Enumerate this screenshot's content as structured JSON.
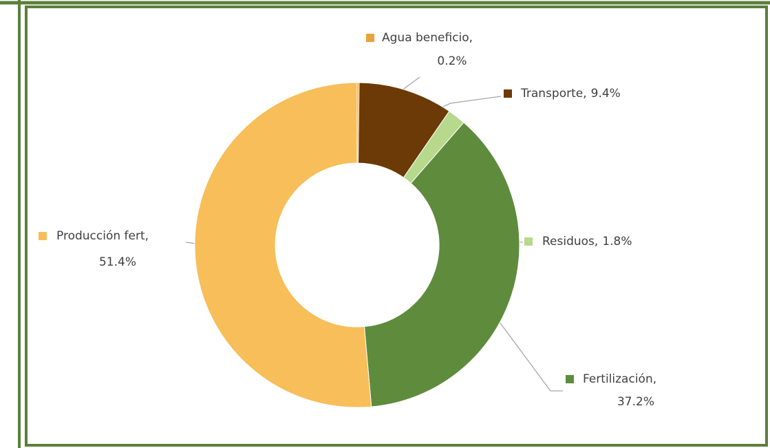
{
  "chart_data": {
    "type": "donut",
    "categories": [
      "Agua beneficio,",
      "Transporte,",
      "Residuos,",
      "Fertilización,",
      "Producción fert,"
    ],
    "values": [
      0.2,
      9.4,
      1.8,
      37.2,
      51.4
    ],
    "value_labels": [
      "0.2%",
      "9.4%",
      "1.8%",
      "37.2%",
      "51.4%"
    ],
    "colors": [
      "#e9a23b",
      "#6b3a06",
      "#b6d98c",
      "#5f8b3d",
      "#f7be59"
    ]
  }
}
